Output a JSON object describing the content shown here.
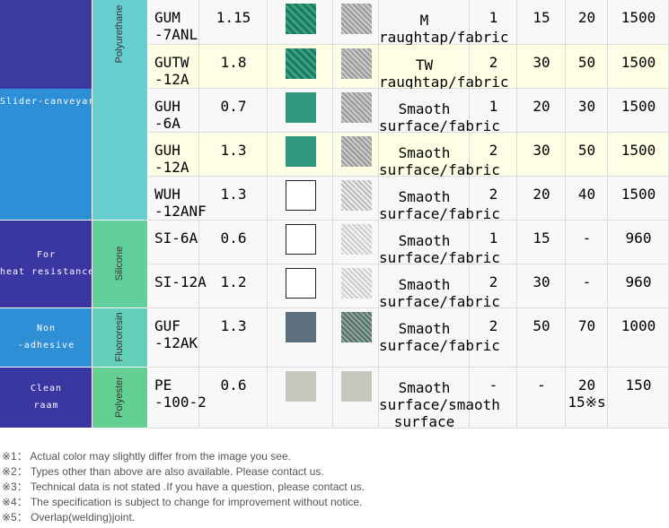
{
  "table": {
    "applications": [
      [
        "Slider-canveyar"
      ],
      [
        "For",
        "heat resistance"
      ],
      [
        "Non",
        "-adhesive"
      ],
      [
        "Clean",
        "raam"
      ]
    ],
    "materials": [
      "Polyurethane",
      "Silicone",
      "Fluororesin",
      "Polyester"
    ],
    "rows": [
      {
        "model": [
          "GUM",
          "-7ANL"
        ],
        "thickness": "1.15",
        "surface": [
          "M",
          "raughtap/fabric"
        ],
        "c1": "1",
        "c2": "15",
        "c3": [
          "20"
        ],
        "c4": "1500"
      },
      {
        "model": [
          "GUTW",
          "-12A"
        ],
        "thickness": "1.8",
        "surface": [
          "TW",
          "raughtap/fabric"
        ],
        "c1": "2",
        "c2": "30",
        "c3": [
          "50"
        ],
        "c4": "1500"
      },
      {
        "model": [
          "GUH",
          "-6A"
        ],
        "thickness": "0.7",
        "surface": [
          "Smaoth",
          "surface/fabric"
        ],
        "c1": "1",
        "c2": "20",
        "c3": [
          "30"
        ],
        "c4": "1500"
      },
      {
        "model": [
          "GUH",
          "-12A"
        ],
        "thickness": "1.3",
        "surface": [
          "Smaoth",
          "surface/fabric"
        ],
        "c1": "2",
        "c2": "30",
        "c3": [
          "50"
        ],
        "c4": "1500"
      },
      {
        "model": [
          "WUH",
          "-12ANF"
        ],
        "thickness": "1.3",
        "surface": [
          "Smaoth",
          "surface/fabric"
        ],
        "c1": "2",
        "c2": "20",
        "c3": [
          "40"
        ],
        "c4": "1500"
      },
      {
        "model": [
          "SI-6A"
        ],
        "thickness": "0.6",
        "surface": [
          "Smaoth",
          "surface/fabric"
        ],
        "c1": "1",
        "c2": "15",
        "c3": [
          "-"
        ],
        "c4": "960"
      },
      {
        "model": [
          "SI-12A"
        ],
        "thickness": "1.2",
        "surface": [
          "Smaoth",
          "surface/fabric"
        ],
        "c1": "2",
        "c2": "30",
        "c3": [
          "-"
        ],
        "c4": "960"
      },
      {
        "model": [
          "GUF",
          "-12AK"
        ],
        "thickness": "1.3",
        "surface": [
          "Smaoth",
          "surface/fabric"
        ],
        "c1": "2",
        "c2": "50",
        "c3": [
          "70"
        ],
        "c4": "1000"
      },
      {
        "model": [
          "PE",
          "-100-2"
        ],
        "thickness": "0.6",
        "surface": [
          "Smaoth",
          "surface/smaoth",
          "surface"
        ],
        "c1": "-",
        "c2": "-",
        "c3": [
          "20",
          "15※s"
        ],
        "c4": "150"
      }
    ]
  },
  "footnotes": [
    "※1： Actual color may slightly differ from the image you see.",
    "※2： Types other than above are also available. Please contact us.",
    "※3： Technical data is not stated .If you have a question, please contact us.",
    "※4： The specification is subject to change for improvement without notice.",
    "※5： Overlap(welding)joint."
  ]
}
